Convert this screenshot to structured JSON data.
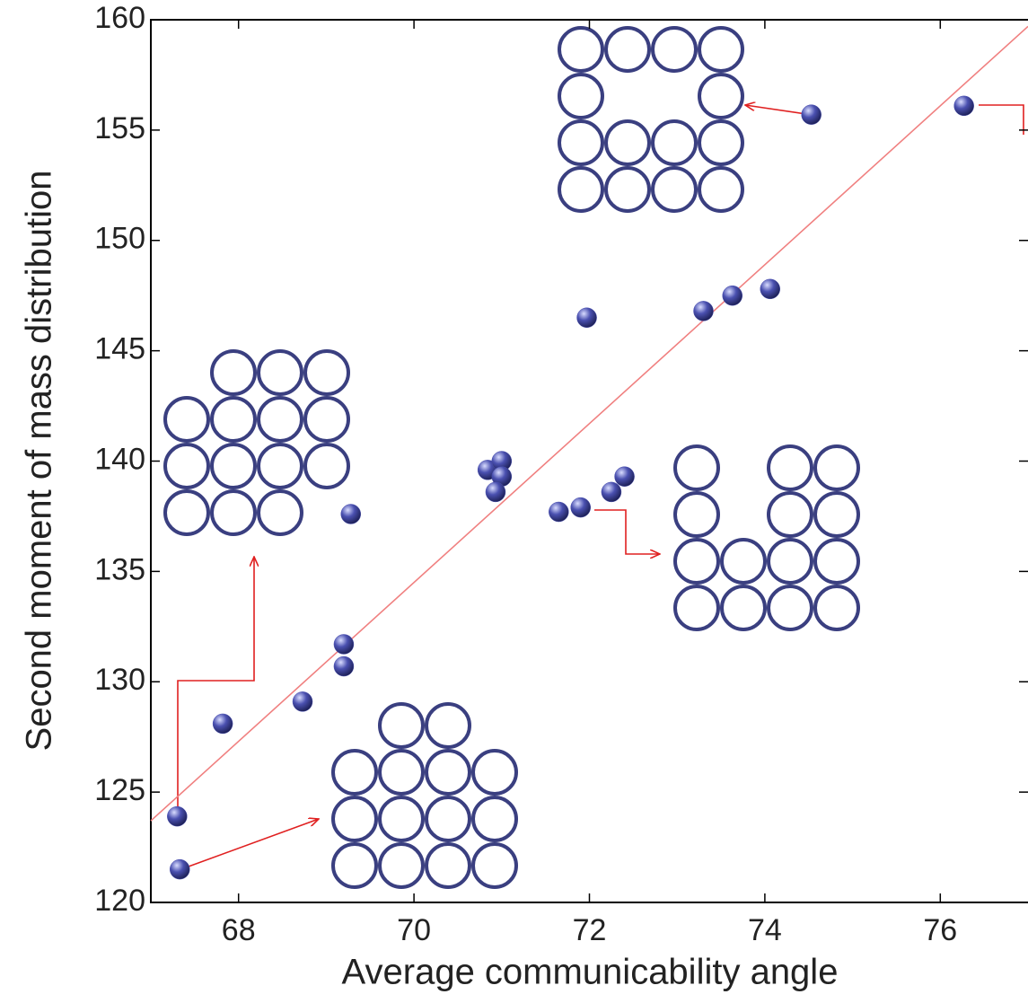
{
  "chart_data": {
    "type": "scatter",
    "xlabel": "Average communicability angle",
    "ylabel": "Second moment of mass distribution",
    "x": [
      67.3,
      67.33,
      67.82,
      68.73,
      69.2,
      69.2,
      69.28,
      70.84,
      71.0,
      71.0,
      70.93,
      71.65,
      71.9,
      71.97,
      72.25,
      72.4,
      73.3,
      73.63,
      74.06,
      74.53,
      76.27
    ],
    "y": [
      123.9,
      121.5,
      128.1,
      129.1,
      131.7,
      130.7,
      137.6,
      139.6,
      140.0,
      139.3,
      138.6,
      137.7,
      137.9,
      146.5,
      138.6,
      139.3,
      146.8,
      147.5,
      147.8,
      155.7,
      156.1
    ],
    "color": "#4a50b0",
    "trend_line": {
      "x": [
        67,
        77
      ],
      "y": [
        123.7,
        159.7
      ],
      "color": "#f08080"
    },
    "xlim": [
      67,
      77
    ],
    "xticks": [
      68,
      70,
      72,
      74,
      76
    ],
    "ylim": [
      120,
      160
    ],
    "yticks": [
      120,
      125,
      130,
      135,
      140,
      145,
      150,
      155,
      160
    ]
  }
}
